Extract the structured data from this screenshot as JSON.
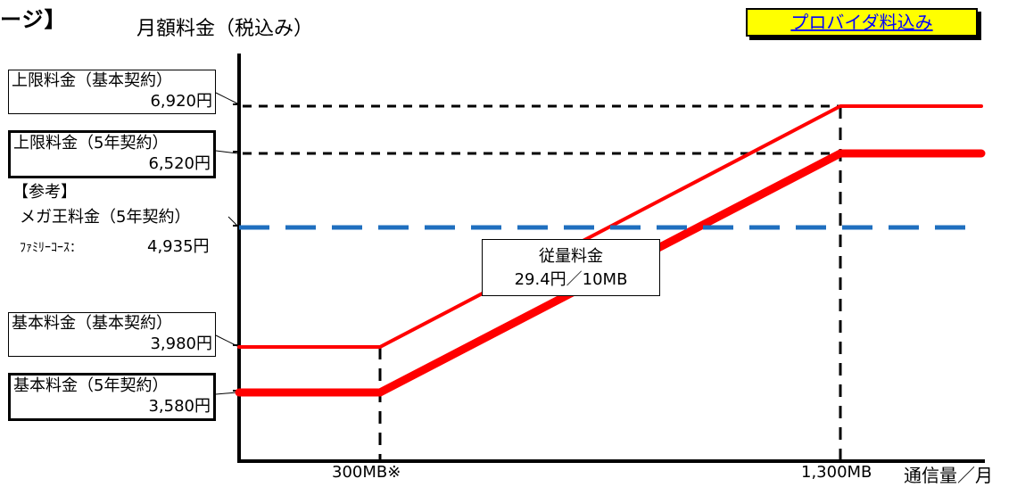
{
  "header": {
    "title_fragment": "ージ】",
    "provider_badge": "プロバイダ料込み"
  },
  "chart_data": {
    "type": "line",
    "ylabel": "月額料金（税込み）",
    "xlabel": "通信量／月",
    "x_ticks": [
      "300MB※",
      "1,300MB"
    ],
    "x_unit": "MB",
    "y_unit": "円",
    "series": [
      {
        "label": "基本料金（基本契約）→ 上限料金（基本契約）",
        "color": "#ff0000",
        "style": "solid-thin",
        "points": [
          [
            0,
            3980
          ],
          [
            300,
            3980
          ],
          [
            1300,
            6920
          ],
          [
            1600,
            6920
          ]
        ]
      },
      {
        "label": "基本料金（5年契約）→ 上限料金（5年契約）",
        "color": "#ff0000",
        "style": "solid-thick",
        "points": [
          [
            0,
            3580
          ],
          [
            300,
            3580
          ],
          [
            1300,
            6520
          ],
          [
            1600,
            6520
          ]
        ]
      },
      {
        "label": "メガ王料金（5年契約）ファミリーコース",
        "color": "#1f6fbf",
        "style": "dashed",
        "points": [
          [
            0,
            4935
          ],
          [
            1600,
            4935
          ]
        ]
      }
    ],
    "y_labels": {
      "cap_basic": {
        "label": "上限料金（基本契約）",
        "value": "6,920円"
      },
      "cap_5yr": {
        "label": "上限料金（5年契約）",
        "value": "6,520円"
      },
      "ref_heading": "【参考】",
      "ref_label": "メガ王料金（5年契約）",
      "ref_course": "ﾌｧﾐﾘｰｺｰｽ：",
      "ref_value": "4,935円",
      "base_basic": {
        "label": "基本料金（基本契約）",
        "value": "3,980円"
      },
      "base_5yr": {
        "label": "基本料金（5年契約）",
        "value": "3,580円"
      }
    },
    "annotation": {
      "title": "従量料金",
      "rate": "29.4円／10MB"
    },
    "grid": false
  }
}
